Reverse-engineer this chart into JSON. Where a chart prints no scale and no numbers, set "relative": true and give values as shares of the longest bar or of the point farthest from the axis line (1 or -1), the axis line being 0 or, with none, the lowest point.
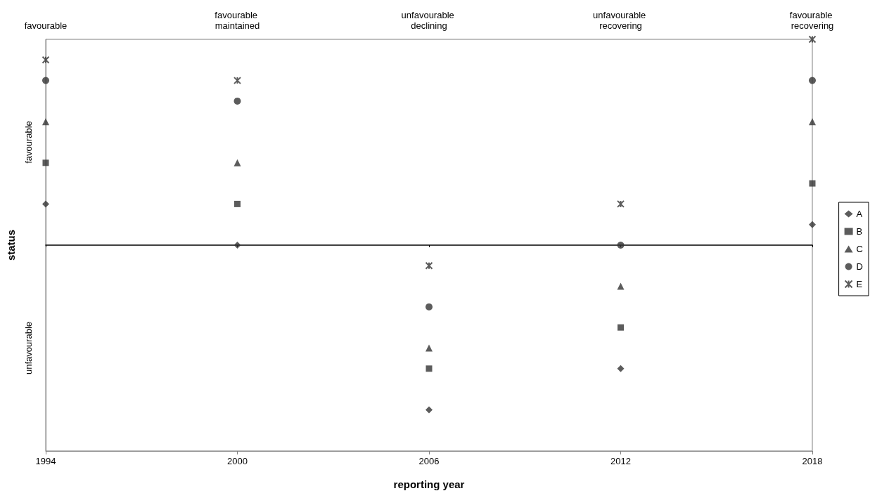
{
  "chart_data": {
    "type": "scatter",
    "relative": true,
    "xlabel": "reporting year",
    "ylabel": "status",
    "x": [
      1994,
      2000,
      2006,
      2012,
      2018
    ],
    "xlim": [
      1994,
      2018
    ],
    "xticks": [
      1994,
      2000,
      2006,
      2012,
      2018
    ],
    "grid": false,
    "legend": "right",
    "annotations": [
      "favourable",
      "unfavourable",
      "favourable",
      "favourable maintained",
      "unfavourable declining",
      "unfavourable recovering",
      "favourable recovering"
    ],
    "series": [
      {
        "name": "A",
        "color": "#333333",
        "marker": "diamond",
        "values": [
          0.2,
          0,
          -0.8,
          -0.6,
          0.1
        ]
      },
      {
        "name": "B",
        "color": "#333333",
        "marker": "square",
        "values": [
          0.4,
          0.2,
          -0.6,
          -0.4,
          0.3
        ]
      },
      {
        "name": "C",
        "color": "#333333",
        "marker": "triangle",
        "values": [
          0.6,
          0.4,
          -0.5,
          -0.2,
          0.6
        ]
      },
      {
        "name": "D",
        "color": "#333333",
        "marker": "circle",
        "values": [
          0.8,
          0.7,
          -0.3,
          0,
          0.8
        ]
      },
      {
        "name": "E",
        "color": "#333333",
        "marker": "cross",
        "values": [
          0.9,
          0.8,
          -0.1,
          0.2,
          1
        ]
      }
    ]
  }
}
